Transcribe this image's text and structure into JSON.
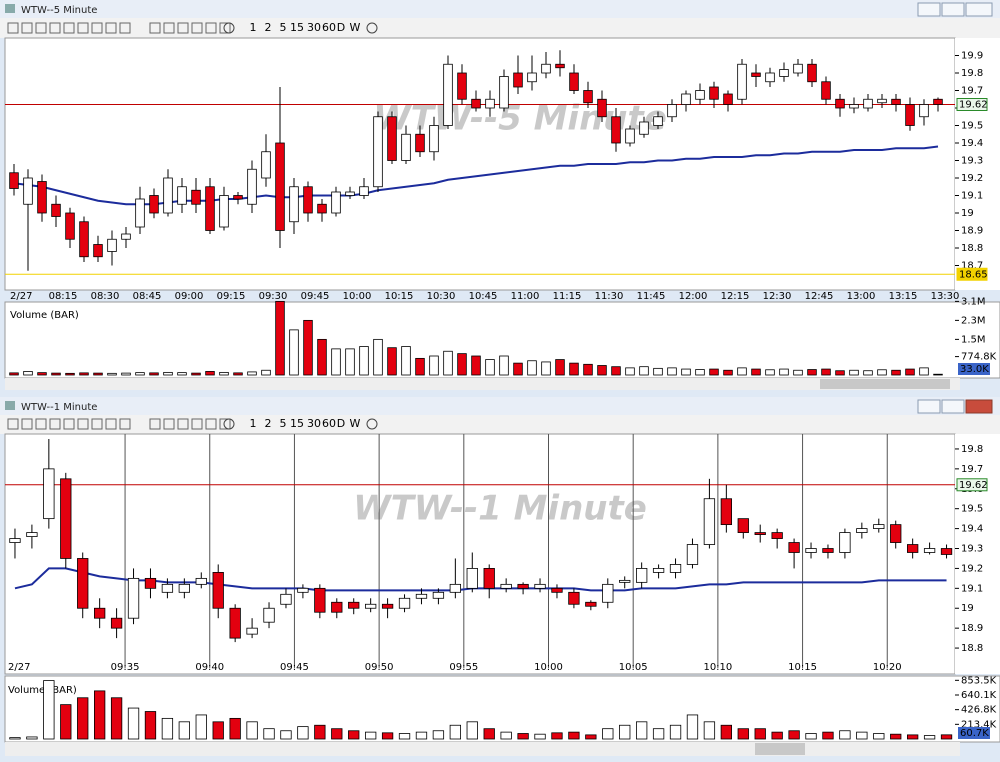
{
  "windows": [
    {
      "title": "WTW--5 Minute"
    },
    {
      "title": "WTW--1 Minute"
    }
  ],
  "toolbar": [
    "1",
    "2",
    "5",
    "15",
    "30",
    "60",
    "D",
    "W"
  ],
  "chart_data": [
    {
      "type": "candlestick",
      "title": "WTW--5 Minute",
      "date_label": "2/27",
      "categories": [
        null,
        null,
        null,
        "08:15",
        null,
        null,
        "08:30",
        null,
        null,
        "08:45",
        null,
        null,
        "09:00",
        null,
        null,
        "09:15",
        null,
        null,
        "09:30",
        null,
        null,
        "09:45",
        null,
        null,
        "10:00",
        null,
        null,
        "10:15",
        null,
        null,
        "10:30",
        null,
        null,
        "10:45",
        null,
        null,
        "11:00",
        null,
        null,
        "11:15",
        null,
        null,
        "11:30",
        null,
        null,
        "11:45",
        null,
        null,
        "12:00",
        null,
        null,
        "12:15",
        null,
        null,
        "12:30",
        null,
        null,
        "12:45",
        null,
        null,
        "13:00",
        null,
        null,
        "13:15",
        null,
        null,
        "13:30"
      ],
      "open": [
        19.23,
        19.05,
        19.18,
        19.05,
        19.0,
        18.95,
        18.82,
        18.78,
        18.85,
        18.92,
        19.1,
        19.0,
        19.05,
        19.13,
        19.15,
        18.92,
        19.1,
        19.05,
        19.2,
        19.4,
        18.95,
        19.15,
        19.05,
        19.0,
        19.1,
        19.1,
        19.15,
        19.55,
        19.3,
        19.45,
        19.35,
        19.5,
        19.8,
        19.65,
        19.6,
        19.6,
        19.8,
        19.75,
        19.8,
        19.85,
        19.8,
        19.7,
        19.65,
        19.55,
        19.4,
        19.45,
        19.5,
        19.55,
        19.62,
        19.65,
        19.72,
        19.68,
        19.65,
        19.8,
        19.75,
        19.78,
        19.8,
        19.85,
        19.75,
        19.65,
        19.6,
        19.6,
        19.63,
        19.65,
        19.62,
        19.55,
        19.65
      ],
      "high": [
        19.28,
        19.25,
        19.22,
        19.1,
        19.03,
        18.98,
        18.87,
        18.9,
        18.92,
        19.15,
        19.14,
        19.25,
        19.2,
        19.2,
        19.2,
        19.15,
        19.12,
        19.3,
        19.45,
        19.72,
        19.2,
        19.18,
        19.08,
        19.15,
        19.15,
        19.2,
        19.58,
        19.58,
        19.5,
        19.5,
        19.55,
        19.9,
        19.85,
        19.7,
        19.7,
        19.82,
        19.9,
        19.9,
        19.92,
        19.93,
        19.85,
        19.75,
        19.7,
        19.6,
        19.5,
        19.55,
        19.58,
        19.65,
        19.7,
        19.74,
        19.75,
        19.7,
        19.88,
        19.85,
        19.83,
        19.86,
        19.88,
        19.88,
        19.78,
        19.68,
        19.66,
        19.68,
        19.68,
        19.68,
        19.66,
        19.65,
        19.66
      ],
      "low": [
        19.1,
        18.67,
        18.95,
        18.92,
        18.8,
        18.72,
        18.72,
        18.7,
        18.8,
        18.88,
        18.97,
        18.98,
        19.0,
        19.0,
        18.88,
        18.9,
        19.05,
        19.0,
        19.15,
        18.8,
        18.88,
        18.95,
        18.95,
        18.98,
        19.08,
        19.08,
        19.12,
        19.28,
        19.28,
        19.32,
        19.3,
        19.48,
        19.62,
        19.58,
        19.55,
        19.58,
        19.68,
        19.7,
        19.77,
        19.78,
        19.68,
        19.6,
        19.52,
        19.35,
        19.38,
        19.43,
        19.48,
        19.52,
        19.58,
        19.62,
        19.6,
        19.58,
        19.62,
        19.72,
        19.72,
        19.75,
        19.78,
        19.72,
        19.62,
        19.55,
        19.57,
        19.58,
        19.6,
        19.58,
        19.47,
        19.5,
        19.58
      ],
      "close": [
        19.14,
        19.2,
        19.0,
        18.98,
        18.85,
        18.75,
        18.75,
        18.85,
        18.88,
        19.08,
        19.0,
        19.2,
        19.15,
        19.05,
        18.9,
        19.1,
        19.08,
        19.25,
        19.35,
        18.9,
        19.15,
        19.0,
        19.0,
        19.12,
        19.12,
        19.15,
        19.55,
        19.3,
        19.45,
        19.35,
        19.5,
        19.85,
        19.65,
        19.6,
        19.65,
        19.78,
        19.72,
        19.8,
        19.85,
        19.83,
        19.7,
        19.63,
        19.55,
        19.4,
        19.48,
        19.52,
        19.55,
        19.62,
        19.68,
        19.7,
        19.65,
        19.62,
        19.85,
        19.78,
        19.8,
        19.82,
        19.85,
        19.75,
        19.65,
        19.6,
        19.62,
        19.65,
        19.65,
        19.62,
        19.5,
        19.62,
        19.62
      ],
      "up_color": "#ffffff",
      "down_color": "#e3000f",
      "lines": [
        {
          "color": "#1c2c9c",
          "values": [
            19.17,
            19.16,
            19.15,
            19.13,
            19.11,
            19.09,
            19.07,
            19.06,
            19.05,
            19.05,
            19.05,
            19.06,
            19.07,
            19.07,
            19.07,
            19.08,
            19.08,
            19.09,
            19.1,
            19.09,
            19.09,
            19.1,
            19.1,
            19.1,
            19.1,
            19.11,
            19.13,
            19.14,
            19.15,
            19.16,
            19.17,
            19.19,
            19.2,
            19.21,
            19.22,
            19.23,
            19.24,
            19.25,
            19.26,
            19.27,
            19.27,
            19.28,
            19.28,
            19.28,
            19.29,
            19.29,
            19.3,
            19.3,
            19.31,
            19.31,
            19.32,
            19.32,
            19.32,
            19.33,
            19.33,
            19.34,
            19.34,
            19.35,
            19.35,
            19.35,
            19.36,
            19.36,
            19.36,
            19.37,
            19.37,
            19.37,
            19.38
          ]
        }
      ],
      "reference_lines": [
        {
          "value": 19.62,
          "color": "#c00000"
        },
        {
          "value": 18.65,
          "color": "#f2d200"
        }
      ],
      "ylim": [
        18.6,
        20.0
      ],
      "yticks": [
        18.7,
        18.8,
        18.9,
        19,
        19.1,
        19.2,
        19.3,
        19.4,
        19.5,
        19.6,
        19.7,
        19.8,
        19.9
      ],
      "vertical_grid": false
    },
    {
      "type": "volume",
      "title": "Volume (BAR)",
      "values": [
        90000,
        150000,
        100000,
        80000,
        70000,
        90000,
        80000,
        70000,
        80000,
        100000,
        90000,
        110000,
        100000,
        80000,
        150000,
        110000,
        90000,
        130000,
        200000,
        3100000,
        1900000,
        2300000,
        1500000,
        1100000,
        1100000,
        1200000,
        1500000,
        1150000,
        1200000,
        700000,
        800000,
        1000000,
        900000,
        800000,
        650000,
        800000,
        500000,
        600000,
        550000,
        650000,
        500000,
        450000,
        400000,
        350000,
        300000,
        350000,
        280000,
        300000,
        250000,
        230000,
        250000,
        200000,
        300000,
        250000,
        220000,
        250000,
        200000,
        230000,
        250000,
        180000,
        200000,
        180000,
        220000,
        200000,
        250000,
        300000,
        33000
      ],
      "ylim": [
        0,
        3200000
      ],
      "yticks": [
        {
          "value": 3100000,
          "label": "3.1M"
        },
        {
          "value": 2300000,
          "label": "2.3M"
        },
        {
          "value": 1500000,
          "label": "1.5M"
        },
        {
          "value": 774800,
          "label": "774.8K"
        }
      ],
      "current": {
        "value": 33000,
        "label": "33.0K"
      }
    },
    {
      "type": "candlestick",
      "title": "WTW--1 Minute",
      "date_label": "2/27",
      "categories": [
        null,
        null,
        null,
        null,
        null,
        null,
        null,
        "09:35",
        null,
        null,
        null,
        null,
        "09:40",
        null,
        null,
        null,
        null,
        "09:45",
        null,
        null,
        null,
        null,
        "09:50",
        null,
        null,
        null,
        null,
        "09:55",
        null,
        null,
        null,
        null,
        "10:00",
        null,
        null,
        null,
        null,
        "10:05",
        null,
        null,
        null,
        null,
        "10:10",
        null,
        null,
        null,
        null,
        "10:15",
        null,
        null,
        null,
        null,
        "10:20",
        null,
        null,
        null
      ],
      "open": [
        19.33,
        19.36,
        19.45,
        19.65,
        19.25,
        19.0,
        18.95,
        18.95,
        19.15,
        19.08,
        19.08,
        19.12,
        19.18,
        19.0,
        18.87,
        18.93,
        19.02,
        19.08,
        19.1,
        19.03,
        19.03,
        19.0,
        19.02,
        19.0,
        19.05,
        19.05,
        19.08,
        19.1,
        19.2,
        19.1,
        19.12,
        19.1,
        19.1,
        19.08,
        19.03,
        19.03,
        19.13,
        19.13,
        19.18,
        19.18,
        19.22,
        19.32,
        19.55,
        19.45,
        19.38,
        19.38,
        19.33,
        19.28,
        19.3,
        19.28,
        19.38,
        19.4,
        19.42,
        19.32,
        19.28,
        19.3
      ],
      "high": [
        19.4,
        19.42,
        19.85,
        19.68,
        19.28,
        19.05,
        19.0,
        19.2,
        19.2,
        19.15,
        19.15,
        19.18,
        19.22,
        19.02,
        18.95,
        19.03,
        19.1,
        19.12,
        19.12,
        19.05,
        19.05,
        19.05,
        19.05,
        19.07,
        19.1,
        19.1,
        19.25,
        19.28,
        19.22,
        19.15,
        19.13,
        19.15,
        19.12,
        19.1,
        19.04,
        19.15,
        19.16,
        19.23,
        19.22,
        19.25,
        19.35,
        19.65,
        19.62,
        19.45,
        19.42,
        19.4,
        19.35,
        19.33,
        19.32,
        19.4,
        19.43,
        19.45,
        19.44,
        19.35,
        19.33,
        19.32
      ],
      "low": [
        19.25,
        19.3,
        19.4,
        19.2,
        18.95,
        18.9,
        18.85,
        18.92,
        19.05,
        19.05,
        19.05,
        19.1,
        18.95,
        18.83,
        18.85,
        18.9,
        19.0,
        19.05,
        18.95,
        18.95,
        18.97,
        18.98,
        18.95,
        18.98,
        19.02,
        19.02,
        19.05,
        19.08,
        19.05,
        19.08,
        19.07,
        19.08,
        19.05,
        19.0,
        18.99,
        19.0,
        19.1,
        19.1,
        19.15,
        19.15,
        19.2,
        19.3,
        19.38,
        19.35,
        19.33,
        19.3,
        19.2,
        19.25,
        19.25,
        19.25,
        19.35,
        19.38,
        19.3,
        19.25,
        19.27,
        19.25
      ],
      "close": [
        19.35,
        19.38,
        19.7,
        19.25,
        19.0,
        18.95,
        18.9,
        19.15,
        19.1,
        19.12,
        19.12,
        19.15,
        19.0,
        18.85,
        18.9,
        19.0,
        19.07,
        19.1,
        18.98,
        18.98,
        19.0,
        19.02,
        19.0,
        19.05,
        19.07,
        19.08,
        19.12,
        19.2,
        19.1,
        19.12,
        19.1,
        19.12,
        19.08,
        19.02,
        19.01,
        19.12,
        19.14,
        19.2,
        19.2,
        19.22,
        19.32,
        19.55,
        19.42,
        19.38,
        19.37,
        19.35,
        19.28,
        19.3,
        19.28,
        19.38,
        19.4,
        19.42,
        19.33,
        19.28,
        19.3,
        19.27
      ],
      "up_color": "#ffffff",
      "down_color": "#e3000f",
      "lines": [
        {
          "color": "#1c2c9c",
          "values": [
            19.1,
            19.12,
            19.2,
            19.2,
            19.18,
            19.16,
            19.15,
            19.14,
            19.14,
            19.13,
            19.13,
            19.13,
            19.12,
            19.11,
            19.1,
            19.1,
            19.1,
            19.1,
            19.09,
            19.09,
            19.09,
            19.09,
            19.09,
            19.09,
            19.09,
            19.09,
            19.09,
            19.1,
            19.1,
            19.1,
            19.1,
            19.1,
            19.1,
            19.1,
            19.09,
            19.09,
            19.09,
            19.1,
            19.1,
            19.1,
            19.11,
            19.12,
            19.12,
            19.13,
            19.13,
            19.13,
            19.13,
            19.13,
            19.13,
            19.13,
            19.13,
            19.14,
            19.14,
            19.14,
            19.14,
            19.14
          ]
        }
      ],
      "reference_lines": [
        {
          "value": 19.62,
          "color": "#c00000"
        }
      ],
      "ylim": [
        18.72,
        19.86
      ],
      "yticks": [
        18.8,
        18.9,
        19,
        19.1,
        19.2,
        19.3,
        19.4,
        19.5,
        19.6,
        19.7,
        19.8
      ],
      "vertical_grid": true
    },
    {
      "type": "volume",
      "title": "Volume (BAR)",
      "values": [
        20000,
        30000,
        850000,
        500000,
        600000,
        700000,
        600000,
        450000,
        400000,
        300000,
        250000,
        350000,
        250000,
        300000,
        250000,
        150000,
        120000,
        180000,
        200000,
        150000,
        120000,
        100000,
        90000,
        80000,
        100000,
        120000,
        200000,
        250000,
        150000,
        100000,
        80000,
        70000,
        90000,
        100000,
        60000,
        150000,
        200000,
        250000,
        150000,
        200000,
        350000,
        250000,
        200000,
        150000,
        150000,
        100000,
        120000,
        80000,
        100000,
        120000,
        100000,
        80000,
        70000,
        60000,
        50000,
        60700
      ],
      "ylim": [
        0,
        880000
      ],
      "yticks": [
        {
          "value": 853500,
          "label": "853.5K"
        },
        {
          "value": 640100,
          "label": "640.1K"
        },
        {
          "value": 426800,
          "label": "426.8K"
        },
        {
          "value": 213400,
          "label": "213.4K"
        }
      ],
      "current": {
        "value": 60700,
        "label": "60.7K"
      }
    }
  ]
}
